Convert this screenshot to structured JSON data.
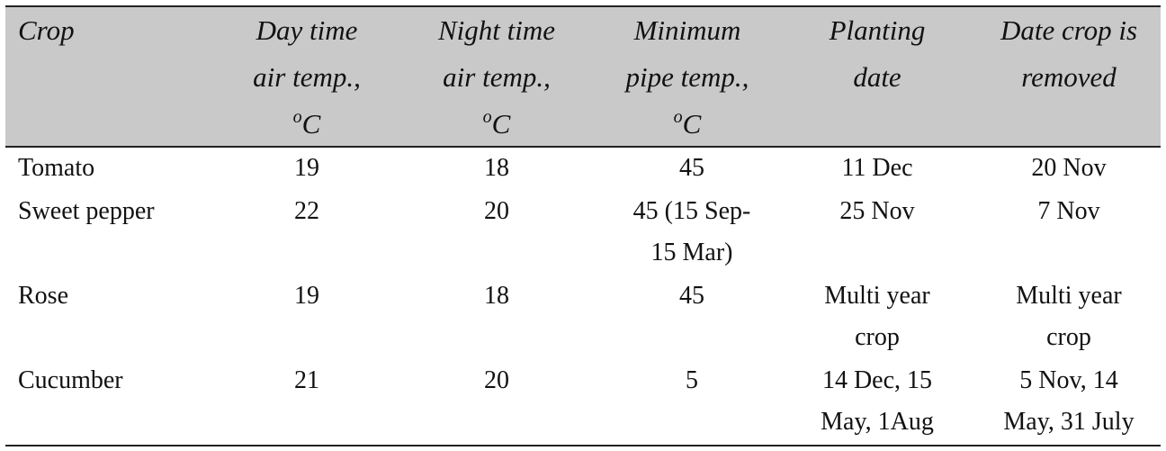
{
  "table": {
    "headers": [
      {
        "lines": [
          "Crop"
        ]
      },
      {
        "lines": [
          "Day time",
          "air temp.,"
        ],
        "unit_sup": "o",
        "unit": "C"
      },
      {
        "lines": [
          "Night time",
          "air temp.,"
        ],
        "unit_sup": "o",
        "unit": "C"
      },
      {
        "lines": [
          "Minimum",
          "pipe temp.,"
        ],
        "unit_sup": "o",
        "unit": "C"
      },
      {
        "lines": [
          "Planting",
          "date"
        ]
      },
      {
        "lines": [
          "Date crop is",
          "removed"
        ]
      }
    ],
    "rows": [
      {
        "crop": [
          "Tomato"
        ],
        "day": [
          "19"
        ],
        "night": [
          "18"
        ],
        "pipe": [
          "45"
        ],
        "planting": [
          "11 Dec"
        ],
        "removed": [
          "20 Nov"
        ]
      },
      {
        "crop": [
          "Sweet pepper"
        ],
        "day": [
          "22"
        ],
        "night": [
          "20"
        ],
        "pipe": [
          "45 (15 Sep-",
          "15 Mar)"
        ],
        "planting": [
          "25 Nov"
        ],
        "removed": [
          "7 Nov"
        ]
      },
      {
        "crop": [
          "Rose"
        ],
        "day": [
          "19"
        ],
        "night": [
          "18"
        ],
        "pipe": [
          "45"
        ],
        "planting": [
          "Multi year",
          "crop"
        ],
        "removed": [
          "Multi year",
          "crop"
        ]
      },
      {
        "crop": [
          "Cucumber"
        ],
        "day": [
          "21"
        ],
        "night": [
          "20"
        ],
        "pipe": [
          "5"
        ],
        "planting": [
          "14 Dec, 15",
          "May, 1Aug"
        ],
        "removed": [
          "5 Nov, 14",
          "May, 31 July"
        ]
      }
    ]
  }
}
